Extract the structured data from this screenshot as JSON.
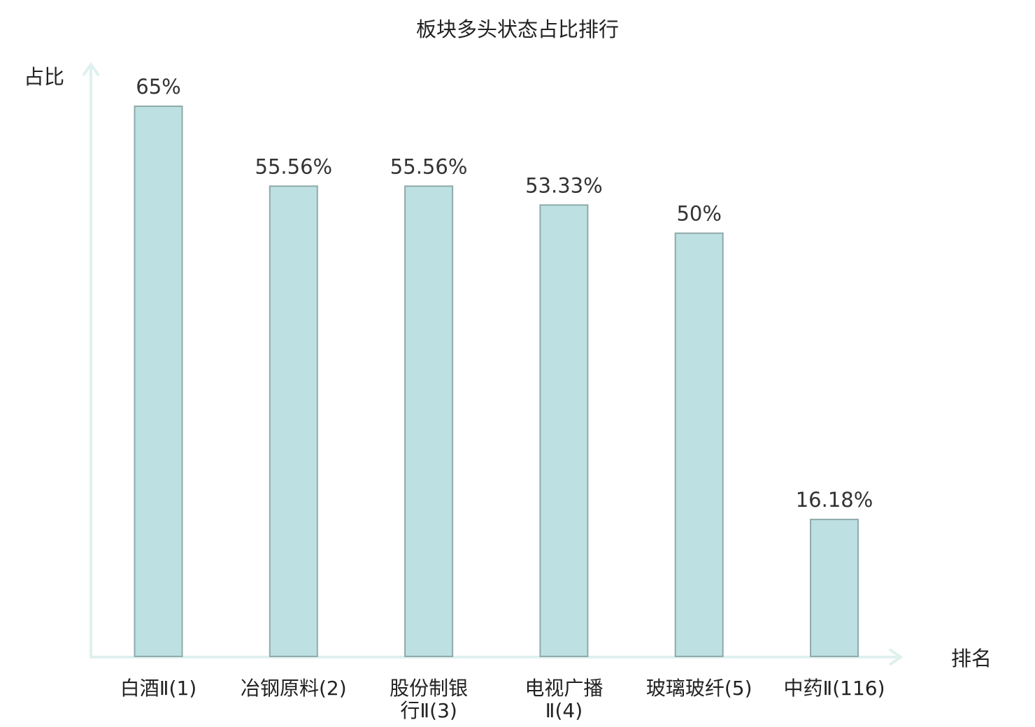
{
  "chart_data": {
    "type": "bar",
    "title": "板块多头状态占比排行",
    "ylabel": "占比",
    "xlabel": "排名",
    "ylim": [
      0,
      70
    ],
    "categories": [
      "白酒Ⅱ(1)",
      "冶钢原料(2)",
      "股份制银行Ⅱ(3)",
      "电视广播Ⅱ(4)",
      "玻璃玻纤(5)",
      "中药Ⅱ(116)"
    ],
    "category_lines": [
      [
        "白酒Ⅱ(1)"
      ],
      [
        "冶钢原料(2)"
      ],
      [
        "股份制银",
        "行Ⅱ(3)"
      ],
      [
        "电视广播",
        "Ⅱ(4)"
      ],
      [
        "玻璃玻纤(5)"
      ],
      [
        "中药Ⅱ(116)"
      ]
    ],
    "values": [
      65,
      55.56,
      55.56,
      53.33,
      50,
      16.18
    ],
    "value_labels": [
      "65%",
      "55.56%",
      "55.56%",
      "53.33%",
      "50%",
      "16.18%"
    ],
    "highlight_index": 5,
    "grid": false,
    "legend": "none"
  },
  "colors": {
    "bar_fill": "#bde0e2",
    "bar_stroke": "#8faaaa",
    "axis": "#dff1ee",
    "highlight_text": "#e8191b",
    "text": "#222222"
  }
}
